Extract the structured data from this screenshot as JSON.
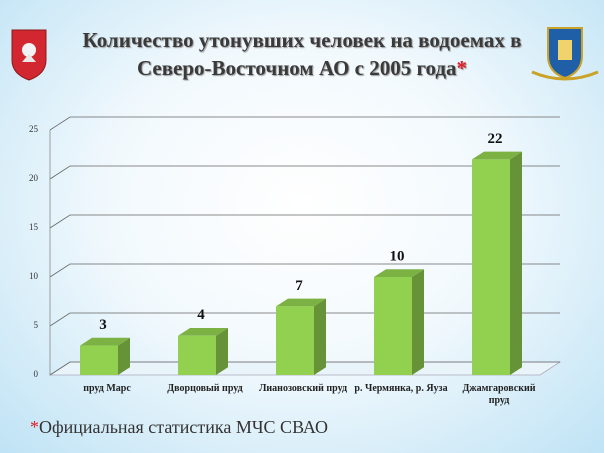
{
  "title": "Количество утонувших человек на водоемах в Северо-Восточном АО с 2005 года",
  "title_mark": "*",
  "chart_data": {
    "type": "bar",
    "categories": [
      "пруд Марс",
      "Дворцовый пруд",
      "Лианозовский пруд",
      "р. Чермянка, р. Яуза",
      "Джамгаровский пруд"
    ],
    "values": [
      3,
      4,
      7,
      10,
      22
    ],
    "color": "#92d050",
    "ylim": [
      0,
      25
    ],
    "yticks": [
      0,
      5,
      10,
      15,
      20,
      25
    ],
    "grid": true
  },
  "footnote_mark": "*",
  "footnote": "Официальная статистика МЧС СВАО"
}
